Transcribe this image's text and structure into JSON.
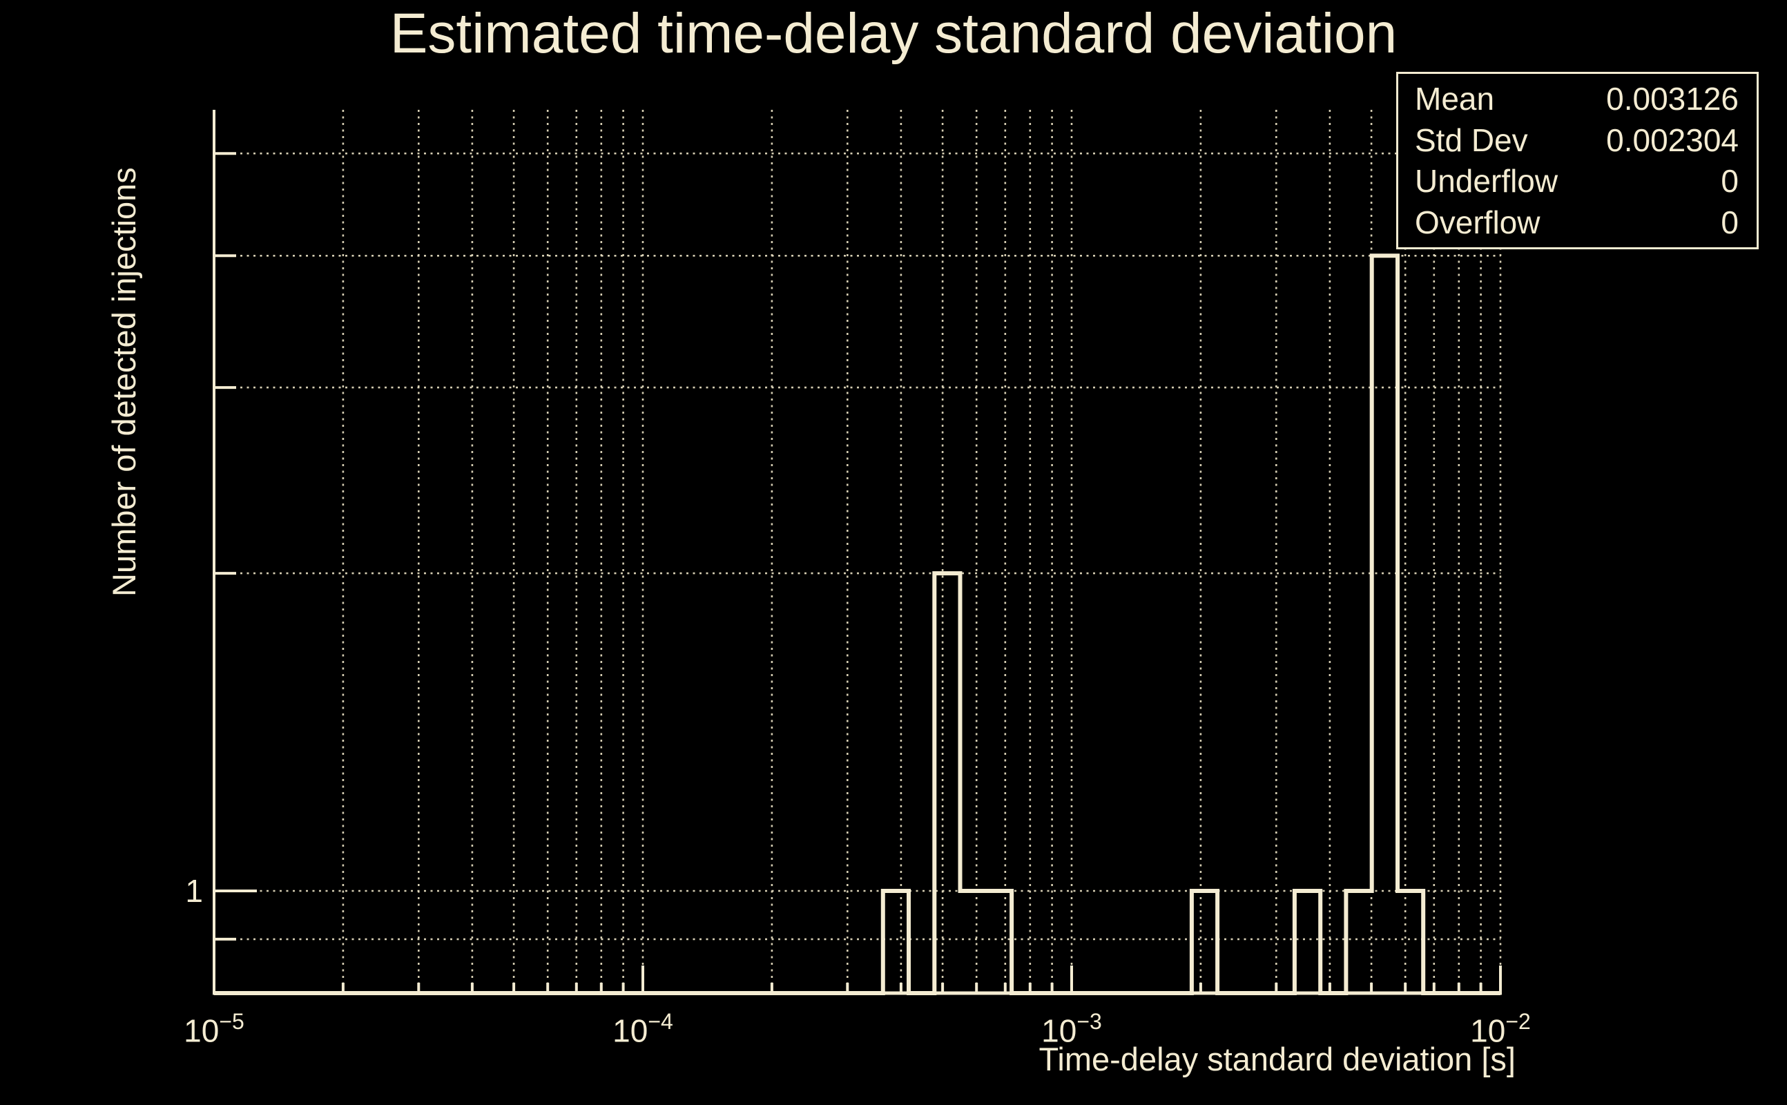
{
  "canvas": {
    "background_color": "#000000",
    "foreground_color": "#f4ecd2",
    "grid_color": "#e8dfc2"
  },
  "stats_box": {
    "rows": [
      {
        "label": "Mean",
        "value": "0.003126"
      },
      {
        "label": "Std Dev",
        "value": "0.002304"
      },
      {
        "label": "Underflow",
        "value": "0"
      },
      {
        "label": "Overflow",
        "value": "0"
      }
    ]
  },
  "chart_data": {
    "type": "bar",
    "subtype": "step-histogram-outline",
    "title": "Estimated time-delay standard deviation",
    "xlabel": "Time-delay standard deviation [s]",
    "ylabel": "Number of detected injections",
    "x_scale": "log",
    "y_scale": "log",
    "xlim": [
      1e-05,
      0.01
    ],
    "ylim": [
      0.8,
      5.5
    ],
    "n_bins": 50,
    "grid": true,
    "legend_position": "none",
    "x_tick_labels": [
      {
        "base": "10",
        "exp": "−5",
        "value": 1e-05
      },
      {
        "base": "10",
        "exp": "−4",
        "value": 0.0001
      },
      {
        "base": "10",
        "exp": "−3",
        "value": 0.001
      },
      {
        "base": "10",
        "exp": "−2",
        "value": 0.01
      }
    ],
    "y_tick_labels": [
      {
        "label": "1",
        "value": 1
      }
    ],
    "y_grid_values": [
      0.9,
      1,
      2,
      3,
      4,
      5
    ],
    "bins": [
      {
        "x0": 0.000363,
        "x1": 0.000417,
        "count": 1
      },
      {
        "x0": 0.000479,
        "x1": 0.00055,
        "count": 2
      },
      {
        "x0": 0.00055,
        "x1": 0.000631,
        "count": 1
      },
      {
        "x0": 0.000631,
        "x1": 0.000724,
        "count": 1
      },
      {
        "x0": 0.001905,
        "x1": 0.002188,
        "count": 1
      },
      {
        "x0": 0.003311,
        "x1": 0.003802,
        "count": 1
      },
      {
        "x0": 0.004365,
        "x1": 0.005012,
        "count": 1
      },
      {
        "x0": 0.005012,
        "x1": 0.005754,
        "count": 4
      },
      {
        "x0": 0.005754,
        "x1": 0.006607,
        "count": 1
      }
    ]
  }
}
